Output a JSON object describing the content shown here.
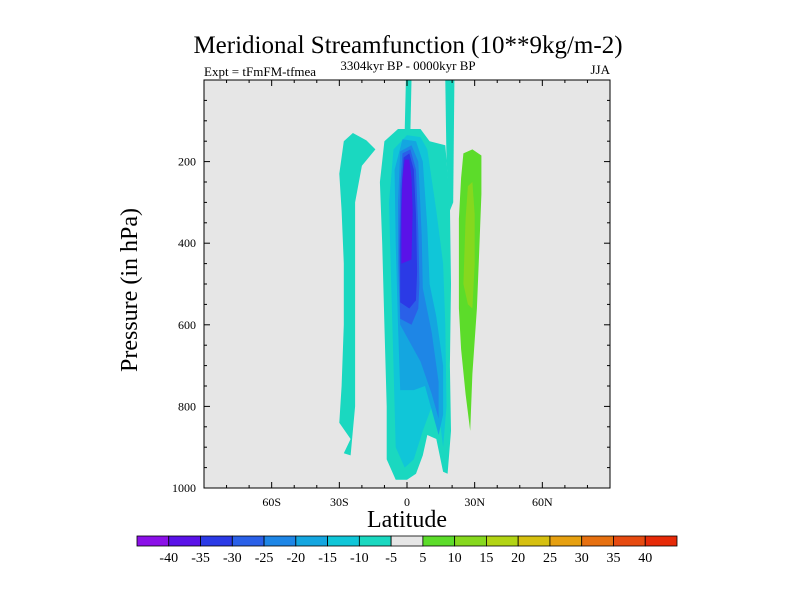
{
  "chart_data": {
    "type": "heatmap",
    "subtype": "filled-contour",
    "title": "Meridional Streamfunction (10**9kg/m-2)",
    "left_label": "Expt = tFmFM-tfmea",
    "center_label": "3304kyr BP - 0000kyr BP",
    "right_label": "JJA",
    "xlabel": "Latitude",
    "ylabel": "Pressure (in hPa)",
    "xlim": [
      -90,
      90
    ],
    "ylim": [
      1000,
      0
    ],
    "x_ticks": [
      {
        "value": -60,
        "label": "60S"
      },
      {
        "value": -30,
        "label": "30S"
      },
      {
        "value": 0,
        "label": "0"
      },
      {
        "value": 30,
        "label": "30N"
      },
      {
        "value": 60,
        "label": "60N"
      }
    ],
    "y_ticks": [
      {
        "value": 200,
        "label": "200"
      },
      {
        "value": 400,
        "label": "400"
      },
      {
        "value": 600,
        "label": "600"
      },
      {
        "value": 800,
        "label": "800"
      },
      {
        "value": 1000,
        "label": "1000"
      }
    ],
    "colorbar": {
      "levels": [
        "-40",
        "-35",
        "-30",
        "-25",
        "-20",
        "-15",
        "-10",
        "-5",
        "5",
        "10",
        "15",
        "20",
        "25",
        "30",
        "35",
        "40"
      ],
      "colors": [
        "#8b10e8",
        "#5a12e8",
        "#2b3ae6",
        "#2a60e8",
        "#1e86e6",
        "#14a6e0",
        "#10c6d8",
        "#1ad8c0",
        "#e6e6e6",
        "#5cdc2a",
        "#86d81e",
        "#b2d414",
        "#d6c010",
        "#e6a010",
        "#e67010",
        "#e64a10",
        "#e62a08"
      ]
    },
    "regions": [
      {
        "name": "sh-anomaly",
        "value_range": [
          -10,
          -5
        ],
        "polygon": [
          [
            -25,
            880
          ],
          [
            -30,
            840
          ],
          [
            -29,
            750
          ],
          [
            -28,
            600
          ],
          [
            -28,
            450
          ],
          [
            -29,
            320
          ],
          [
            -30,
            230
          ],
          [
            -28,
            150
          ],
          [
            -24,
            130
          ],
          [
            -18,
            148
          ],
          [
            -14,
            170
          ],
          [
            -20,
            210
          ],
          [
            -23,
            300
          ],
          [
            -23,
            450
          ],
          [
            -23,
            600
          ],
          [
            -23,
            800
          ],
          [
            -25,
            920
          ],
          [
            -28,
            915
          ]
        ]
      },
      {
        "name": "nh-positive",
        "value_range": [
          5,
          10
        ],
        "polygon": [
          [
            23,
            560
          ],
          [
            23,
            340
          ],
          [
            24,
            240
          ],
          [
            25,
            180
          ],
          [
            29,
            170
          ],
          [
            33,
            185
          ],
          [
            33,
            280
          ],
          [
            32,
            420
          ],
          [
            31,
            560
          ],
          [
            29,
            720
          ],
          [
            28,
            860
          ],
          [
            26,
            770
          ],
          [
            24,
            660
          ]
        ]
      },
      {
        "name": "nh-positive-core",
        "value_range": [
          10,
          15
        ],
        "polygon": [
          [
            25,
            500
          ],
          [
            26,
            340
          ],
          [
            27,
            260
          ],
          [
            29,
            250
          ],
          [
            30,
            330
          ],
          [
            30,
            450
          ],
          [
            29,
            560
          ],
          [
            27,
            550
          ]
        ]
      },
      {
        "name": "jet-1",
        "value_range": [
          -10,
          -5
        ],
        "polygon": [
          [
            -0.5,
            0
          ],
          [
            2,
            0
          ],
          [
            1.5,
            125
          ],
          [
            -1,
            125
          ]
        ]
      },
      {
        "name": "jet-2",
        "value_range": [
          -10,
          -5
        ],
        "polygon": [
          [
            17,
            0
          ],
          [
            21,
            0
          ],
          [
            20.5,
            300
          ],
          [
            19,
            320
          ],
          [
            17.5,
            200
          ]
        ]
      },
      {
        "name": "cell-l1",
        "value_range": [
          -10,
          -5
        ],
        "polygon": [
          [
            -5,
            980
          ],
          [
            -9,
            930
          ],
          [
            -9,
            800
          ],
          [
            -10,
            600
          ],
          [
            -11,
            400
          ],
          [
            -12,
            250
          ],
          [
            -10,
            150
          ],
          [
            -4,
            120
          ],
          [
            6,
            120
          ],
          [
            10,
            150
          ],
          [
            17,
            160
          ],
          [
            19,
            300
          ],
          [
            19.5,
            500
          ],
          [
            19,
            700
          ],
          [
            19.5,
            860
          ],
          [
            18,
            965
          ],
          [
            16,
            960
          ],
          [
            13,
            880
          ],
          [
            9,
            870
          ],
          [
            7,
            920
          ],
          [
            4,
            965
          ],
          [
            0,
            980
          ]
        ]
      },
      {
        "name": "cell-l2",
        "value_range": [
          -15,
          -10
        ],
        "polygon": [
          [
            -1,
            950
          ],
          [
            -5,
            900
          ],
          [
            -6,
            700
          ],
          [
            -7,
            500
          ],
          [
            -8,
            300
          ],
          [
            -6,
            170
          ],
          [
            0,
            135
          ],
          [
            6,
            140
          ],
          [
            9,
            170
          ],
          [
            13,
            320
          ],
          [
            16,
            450
          ],
          [
            17,
            600
          ],
          [
            17.5,
            800
          ],
          [
            16,
            900
          ],
          [
            14,
            810
          ],
          [
            11,
            800
          ],
          [
            7,
            860
          ],
          [
            3,
            930
          ]
        ]
      },
      {
        "name": "cell-l3",
        "value_range": [
          -20,
          -15
        ],
        "polygon": [
          [
            -3,
            760
          ],
          [
            -4,
            600
          ],
          [
            -5,
            400
          ],
          [
            -5.5,
            220
          ],
          [
            -2,
            145
          ],
          [
            4,
            150
          ],
          [
            7,
            200
          ],
          [
            9,
            360
          ],
          [
            10,
            500
          ],
          [
            13,
            580
          ],
          [
            16,
            700
          ],
          [
            16,
            820
          ],
          [
            14,
            870
          ],
          [
            11,
            810
          ],
          [
            8,
            750
          ],
          [
            3,
            760
          ]
        ]
      },
      {
        "name": "cell-l4",
        "value_range": [
          -25,
          -20
        ],
        "polygon": [
          [
            -3,
            600
          ],
          [
            -4,
            450
          ],
          [
            -4,
            300
          ],
          [
            -3,
            175
          ],
          [
            2,
            160
          ],
          [
            5,
            200
          ],
          [
            6.5,
            380
          ],
          [
            7,
            510
          ],
          [
            11,
            620
          ],
          [
            14,
            740
          ],
          [
            14,
            830
          ],
          [
            11,
            770
          ],
          [
            6,
            690
          ],
          [
            2,
            650
          ]
        ]
      },
      {
        "name": "cell-l5",
        "value_range": [
          -30,
          -25
        ],
        "polygon": [
          [
            -3,
            585
          ],
          [
            -3.5,
            420
          ],
          [
            -3,
            260
          ],
          [
            -2,
            180
          ],
          [
            1.5,
            170
          ],
          [
            4,
            220
          ],
          [
            5,
            370
          ],
          [
            5.5,
            500
          ],
          [
            5,
            560
          ],
          [
            2,
            600
          ]
        ]
      },
      {
        "name": "cell-l6",
        "value_range": [
          -35,
          -30
        ],
        "polygon": [
          [
            -3,
            545
          ],
          [
            -3,
            400
          ],
          [
            -2.5,
            270
          ],
          [
            -1.5,
            190
          ],
          [
            1,
            180
          ],
          [
            3,
            220
          ],
          [
            4,
            330
          ],
          [
            4.5,
            470
          ],
          [
            4,
            540
          ],
          [
            1,
            560
          ]
        ]
      },
      {
        "name": "cell-l7",
        "value_range": [
          -40,
          -35
        ],
        "polygon": [
          [
            -2.5,
            450
          ],
          [
            -2.5,
            330
          ],
          [
            -2,
            240
          ],
          [
            -1,
            195
          ],
          [
            1,
            195
          ],
          [
            2,
            240
          ],
          [
            2.5,
            320
          ],
          [
            2,
            440
          ]
        ]
      }
    ]
  }
}
